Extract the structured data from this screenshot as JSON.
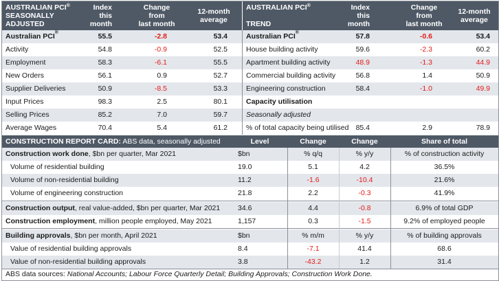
{
  "left_panel": {
    "header": {
      "line1": "AUSTRALIAN PCI",
      "sup": "®",
      "line2": "SEASONALLY",
      "line3": "ADJUSTED",
      "col_index": [
        "Index",
        "this",
        "month"
      ],
      "col_change": [
        "Change",
        "from",
        "last month"
      ],
      "col_avg": [
        "12-month",
        "average"
      ]
    },
    "rows": [
      {
        "label": "Australian PCI",
        "sup": "®",
        "index": "55.5",
        "change": "-2.8",
        "avg": "53.4",
        "bold": true,
        "neg": true
      },
      {
        "label": "Activity",
        "index": "54.8",
        "change": "-0.9",
        "avg": "52.5",
        "neg": true
      },
      {
        "label": "Employment",
        "index": "58.3",
        "change": "-6.1",
        "avg": "55.5",
        "neg": true
      },
      {
        "label": "New Orders",
        "index": "56.1",
        "change": "0.9",
        "avg": "52.7"
      },
      {
        "label": "Supplier Deliveries",
        "index": "50.9",
        "change": "-8.5",
        "avg": "53.3",
        "neg": true
      },
      {
        "label": "Input Prices",
        "index": "98.3",
        "change": "2.5",
        "avg": "80.1"
      },
      {
        "label": "Selling Prices",
        "index": "85.2",
        "change": "7.0",
        "avg": "59.7"
      },
      {
        "label": "Average Wages",
        "index": "70.4",
        "change": "5.4",
        "avg": "61.2"
      }
    ]
  },
  "right_panel": {
    "header": {
      "line1": "AUSTRALIAN PCI",
      "sup": "®",
      "line2": "TREND",
      "col_index": [
        "Index",
        "this",
        "month"
      ],
      "col_change": [
        "Change",
        "from",
        "last month"
      ],
      "col_avg": [
        "12-month",
        "average"
      ]
    },
    "rows": [
      {
        "label": "Australian PCI",
        "sup": "®",
        "index": "57.8",
        "change": "-0.6",
        "avg": "53.4",
        "bold": true,
        "neg": true
      },
      {
        "label": "House building activity",
        "index": "59.6",
        "change": "-2.3",
        "avg": "60.2",
        "neg": true
      },
      {
        "label": "Apartment building activity",
        "index": "48.9",
        "change": "-1.3",
        "avg": "44.9",
        "neg": true,
        "idxred": true,
        "avgred": true
      },
      {
        "label": "Commercial building activity",
        "index": "56.8",
        "change": "1.4",
        "avg": "50.9"
      },
      {
        "label": "Engineering construction",
        "index": "58.4",
        "change": "-1.0",
        "avg": "49.9",
        "neg": true,
        "avgred": true
      },
      {
        "label": "Capacity utilisation",
        "index": "",
        "change": "",
        "avg": "",
        "bold": true
      },
      {
        "label": "Seasonally adjusted",
        "index": "",
        "change": "",
        "avg": "",
        "italic": true
      },
      {
        "label": "% of total capacity being utilised",
        "index": "85.4",
        "change": "2.9",
        "avg": "78.9"
      }
    ]
  },
  "card": {
    "title_bold": "CONSTRUCTION REPORT CARD:",
    "title_rest": " ABS data, seasonally adjusted",
    "col_level": "Level",
    "col_change1": "Change",
    "col_change2": "Change",
    "col_share": "Share of total",
    "rows": [
      {
        "bold": "Construction work done",
        "rest": ", $bn per quarter, Mar 2021",
        "level": "$bn",
        "c1": "% q/q",
        "c2": "% y/y",
        "share": "% of construction activity"
      },
      {
        "rest": "Volume of residential building",
        "level": "19.0",
        "c1": "5.1",
        "c2": "4.2",
        "share": "36.5%"
      },
      {
        "rest": "Volume of non-residential building",
        "level": "11.2",
        "c1": "-1.6",
        "c2": "-10.4",
        "share": "21.6%",
        "c1neg": true,
        "c2neg": true
      },
      {
        "rest": "Volume of engineering construction",
        "level": "21.8",
        "c1": "2.2",
        "c2": "-0.3",
        "share": "41.9%",
        "c2neg": true
      },
      {
        "bold": "Construction output",
        "rest": ", real value-added, $bn per quarter, Mar 2021",
        "level": "34.6",
        "c1": "4.4",
        "c2": "-0.8",
        "share": "6.9% of total GDP",
        "c2neg": true
      },
      {
        "bold": "Construction employment",
        "rest": ", million people employed, May 2021",
        "level": "1,157",
        "c1": "0.3",
        "c2": "-1.5",
        "share": "9.2% of employed people",
        "c2neg": true
      },
      {
        "bold": "Building approvals",
        "rest": ", $bn per month, April 2021",
        "level": "$bn",
        "c1": "% m/m",
        "c2": "% y/y",
        "share": "% of building approvals"
      },
      {
        "rest": "Value of residential building approvals",
        "level": "8.4",
        "c1": "-7.1",
        "c2": "41.4",
        "share": "68.6",
        "c1neg": true
      },
      {
        "rest": "Value of non-residential building approvals",
        "level": "3.8",
        "c1": "-43.2",
        "c2": "1.2",
        "share": "31.4",
        "c1neg": true
      }
    ]
  },
  "footer": {
    "prefix": "ABS data sources: ",
    "sources": "National Accounts; Labour Force Quarterly Detail; Building Approvals; Construction Work Done."
  },
  "colors": {
    "header_bg": "#4f5966",
    "alt_row": "#e3e7ec",
    "negative": "#e41b17"
  }
}
